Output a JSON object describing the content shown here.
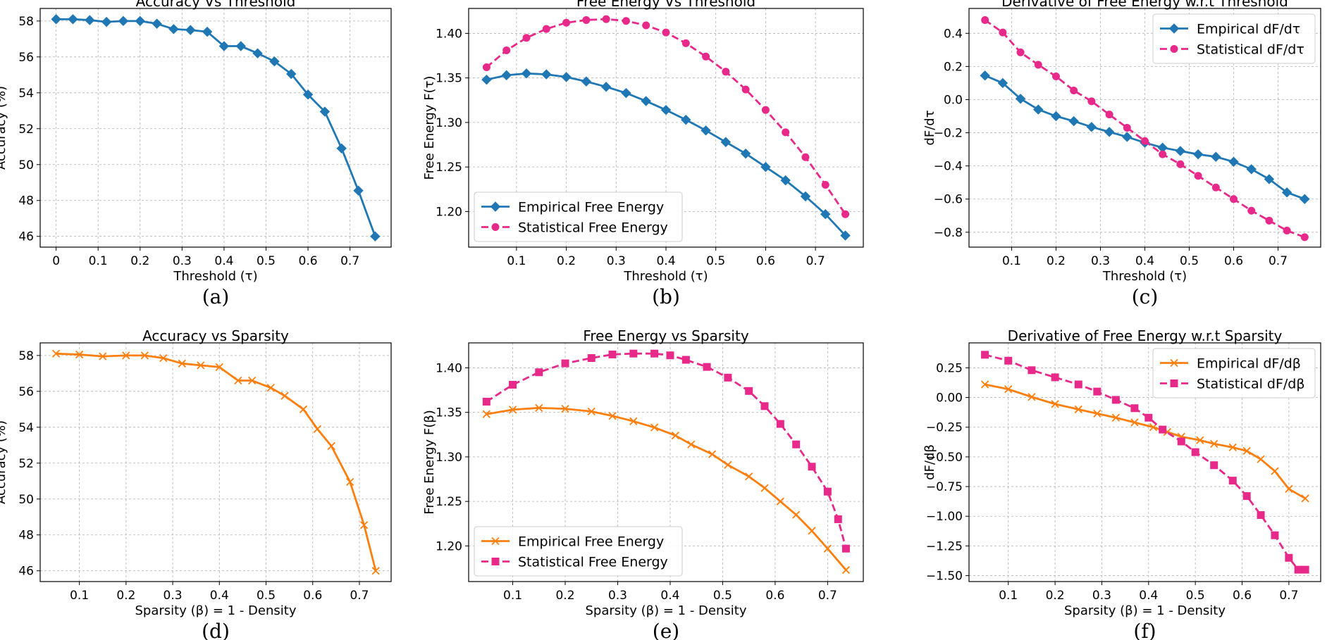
{
  "chart_data": [
    {
      "id": "a",
      "type": "line",
      "caption": "(a)",
      "title": "Accuracy Vs Threshold",
      "xlabel": "Threshold (τ)",
      "ylabel": "Accuracy (%)",
      "xlim": [
        -0.038,
        0.798
      ],
      "ylim": [
        45.4,
        58.7
      ],
      "xticks": [
        0.0,
        0.1,
        0.2,
        0.3,
        0.4,
        0.5,
        0.6,
        0.7
      ],
      "yticks": [
        46,
        48,
        50,
        52,
        54,
        56,
        58
      ],
      "grid": true,
      "legend": null,
      "series": [
        {
          "name": "Accuracy",
          "color": "#1f77b4",
          "dash": "solid",
          "marker": "diamond",
          "x": [
            0.0,
            0.04,
            0.08,
            0.12,
            0.16,
            0.2,
            0.24,
            0.28,
            0.32,
            0.36,
            0.4,
            0.44,
            0.48,
            0.52,
            0.56,
            0.6,
            0.64,
            0.68,
            0.72,
            0.76
          ],
          "y": [
            58.1,
            58.1,
            58.05,
            57.95,
            58.0,
            58.0,
            57.85,
            57.55,
            57.5,
            57.4,
            56.6,
            56.6,
            56.2,
            55.75,
            55.05,
            53.9,
            52.95,
            50.9,
            48.55,
            46.0
          ]
        }
      ]
    },
    {
      "id": "b",
      "type": "line",
      "caption": "(b)",
      "title": "Free Energy Vs Threshold",
      "xlabel": "Threshold (τ)",
      "ylabel": "Free Energy F(τ)",
      "xlim": [
        0.004,
        0.796
      ],
      "ylim": [
        1.16,
        1.428
      ],
      "xticks": [
        0.1,
        0.2,
        0.3,
        0.4,
        0.5,
        0.6,
        0.7
      ],
      "yticks": [
        1.2,
        1.25,
        1.3,
        1.35,
        1.4
      ],
      "ytick_labels": [
        "1.20",
        "1.25",
        "1.30",
        "1.35",
        "1.40"
      ],
      "grid": true,
      "legend": "lower-left",
      "series": [
        {
          "name": "Empirical Free Energy",
          "color": "#1f77b4",
          "dash": "solid",
          "marker": "diamond",
          "x": [
            0.04,
            0.08,
            0.12,
            0.16,
            0.2,
            0.24,
            0.28,
            0.32,
            0.36,
            0.4,
            0.44,
            0.48,
            0.52,
            0.56,
            0.6,
            0.64,
            0.68,
            0.72,
            0.76
          ],
          "y": [
            1.348,
            1.353,
            1.355,
            1.354,
            1.351,
            1.346,
            1.34,
            1.333,
            1.324,
            1.314,
            1.303,
            1.291,
            1.278,
            1.265,
            1.25,
            1.235,
            1.217,
            1.197,
            1.173
          ]
        },
        {
          "name": "Statistical Free Energy",
          "color": "#e7298a",
          "dash": "dashed",
          "marker": "circle",
          "x": [
            0.04,
            0.08,
            0.12,
            0.16,
            0.2,
            0.24,
            0.28,
            0.32,
            0.36,
            0.4,
            0.44,
            0.48,
            0.52,
            0.56,
            0.6,
            0.64,
            0.68,
            0.72,
            0.76
          ],
          "y": [
            1.362,
            1.381,
            1.395,
            1.405,
            1.412,
            1.415,
            1.416,
            1.414,
            1.409,
            1.401,
            1.389,
            1.374,
            1.357,
            1.337,
            1.314,
            1.289,
            1.261,
            1.23,
            1.197
          ]
        }
      ]
    },
    {
      "id": "c",
      "type": "line",
      "caption": "(c)",
      "title": "Derivative of Free Energy w.r.t Threshold",
      "xlabel": "Threshold (τ)",
      "ylabel": "dF/dτ",
      "xlim": [
        0.004,
        0.796
      ],
      "ylim": [
        -0.89,
        0.55
      ],
      "xticks": [
        0.1,
        0.2,
        0.3,
        0.4,
        0.5,
        0.6,
        0.7
      ],
      "yticks": [
        -0.8,
        -0.6,
        -0.4,
        -0.2,
        0.0,
        0.2,
        0.4
      ],
      "ytick_labels": [
        "−0.8",
        "−0.6",
        "−0.4",
        "−0.2",
        "0.0",
        "0.2",
        "0.4"
      ],
      "grid": true,
      "legend": "upper-right",
      "series": [
        {
          "name": "Empirical dF/dτ",
          "color": "#1f77b4",
          "dash": "solid",
          "marker": "diamond",
          "x": [
            0.04,
            0.08,
            0.12,
            0.16,
            0.2,
            0.24,
            0.28,
            0.32,
            0.36,
            0.4,
            0.44,
            0.48,
            0.52,
            0.56,
            0.6,
            0.64,
            0.68,
            0.72,
            0.76
          ],
          "y": [
            0.145,
            0.1,
            0.005,
            -0.06,
            -0.1,
            -0.13,
            -0.165,
            -0.195,
            -0.225,
            -0.26,
            -0.29,
            -0.31,
            -0.33,
            -0.345,
            -0.375,
            -0.42,
            -0.48,
            -0.56,
            -0.6
          ]
        },
        {
          "name": "Statistical dF/dτ",
          "color": "#e7298a",
          "dash": "dashed",
          "marker": "circle",
          "x": [
            0.04,
            0.08,
            0.12,
            0.16,
            0.2,
            0.24,
            0.28,
            0.32,
            0.36,
            0.4,
            0.44,
            0.48,
            0.52,
            0.56,
            0.6,
            0.64,
            0.68,
            0.72,
            0.76
          ],
          "y": [
            0.48,
            0.405,
            0.285,
            0.21,
            0.14,
            0.055,
            -0.01,
            -0.09,
            -0.17,
            -0.25,
            -0.33,
            -0.39,
            -0.46,
            -0.53,
            -0.6,
            -0.67,
            -0.73,
            -0.79,
            -0.83
          ]
        }
      ]
    },
    {
      "id": "d",
      "type": "line",
      "caption": "(d)",
      "title": "Accuracy vs Sparsity",
      "xlabel": "Sparsity (β) = 1 - Density",
      "ylabel": "Accuracy (%)",
      "xlim": [
        0.016,
        0.768
      ],
      "ylim": [
        45.4,
        58.7
      ],
      "xticks": [
        0.1,
        0.2,
        0.3,
        0.4,
        0.5,
        0.6,
        0.7
      ],
      "yticks": [
        46,
        48,
        50,
        52,
        54,
        56,
        58
      ],
      "grid": true,
      "legend": null,
      "series": [
        {
          "name": "Accuracy",
          "color": "#ff7f0e",
          "dash": "solid",
          "marker": "x",
          "x": [
            0.05,
            0.1,
            0.15,
            0.2,
            0.24,
            0.28,
            0.32,
            0.36,
            0.4,
            0.44,
            0.47,
            0.51,
            0.54,
            0.58,
            0.61,
            0.64,
            0.68,
            0.71,
            0.735
          ],
          "y": [
            58.1,
            58.05,
            57.95,
            58.0,
            58.0,
            57.85,
            57.55,
            57.45,
            57.35,
            56.6,
            56.6,
            56.2,
            55.75,
            55.0,
            53.9,
            52.95,
            50.95,
            48.55,
            46.0
          ]
        }
      ]
    },
    {
      "id": "e",
      "type": "line",
      "caption": "(e)",
      "title": "Free Energy vs Sparsity",
      "xlabel": "Sparsity (β) = 1 - Density",
      "ylabel": "Free Energy F(β)",
      "xlim": [
        0.016,
        0.768
      ],
      "ylim": [
        1.16,
        1.428
      ],
      "xticks": [
        0.1,
        0.2,
        0.3,
        0.4,
        0.5,
        0.6,
        0.7
      ],
      "yticks": [
        1.2,
        1.25,
        1.3,
        1.35,
        1.4
      ],
      "ytick_labels": [
        "1.20",
        "1.25",
        "1.30",
        "1.35",
        "1.40"
      ],
      "grid": true,
      "legend": "lower-left",
      "series": [
        {
          "name": "Empirical Free Energy",
          "color": "#ff7f0e",
          "dash": "solid",
          "marker": "x",
          "x": [
            0.05,
            0.1,
            0.15,
            0.2,
            0.25,
            0.29,
            0.33,
            0.37,
            0.41,
            0.44,
            0.48,
            0.51,
            0.55,
            0.58,
            0.61,
            0.64,
            0.67,
            0.7,
            0.735
          ],
          "y": [
            1.348,
            1.353,
            1.355,
            1.354,
            1.351,
            1.346,
            1.34,
            1.333,
            1.324,
            1.314,
            1.303,
            1.291,
            1.278,
            1.265,
            1.25,
            1.235,
            1.217,
            1.197,
            1.173
          ]
        },
        {
          "name": "Statistical Free Energy",
          "color": "#e7298a",
          "dash": "dashed",
          "marker": "square",
          "x": [
            0.05,
            0.1,
            0.15,
            0.2,
            0.25,
            0.29,
            0.33,
            0.37,
            0.4,
            0.43,
            0.47,
            0.51,
            0.55,
            0.58,
            0.61,
            0.64,
            0.67,
            0.7,
            0.72,
            0.735
          ],
          "y": [
            1.362,
            1.381,
            1.395,
            1.405,
            1.411,
            1.415,
            1.416,
            1.416,
            1.414,
            1.409,
            1.401,
            1.389,
            1.374,
            1.357,
            1.337,
            1.314,
            1.289,
            1.261,
            1.23,
            1.197
          ]
        }
      ]
    },
    {
      "id": "f",
      "type": "line",
      "caption": "(f)",
      "title": "Derivative of Free Energy w.r.t Sparsity",
      "xlabel": "Sparsity (β) = 1 - Density",
      "ylabel": "dF/dβ",
      "xlim": [
        0.016,
        0.768
      ],
      "ylim": [
        -1.55,
        0.46
      ],
      "xticks": [
        0.1,
        0.2,
        0.3,
        0.4,
        0.5,
        0.6,
        0.7
      ],
      "yticks": [
        -1.5,
        -1.25,
        -1.0,
        -0.75,
        -0.5,
        -0.25,
        0.0,
        0.25
      ],
      "ytick_labels": [
        "−1.50",
        "−1.25",
        "−1.00",
        "−0.75",
        "−0.50",
        "−0.25",
        "0.00",
        "0.25"
      ],
      "grid": true,
      "legend": "upper-right",
      "series": [
        {
          "name": "Empirical dF/dβ",
          "color": "#ff7f0e",
          "dash": "solid",
          "marker": "x",
          "x": [
            0.05,
            0.1,
            0.15,
            0.2,
            0.25,
            0.29,
            0.33,
            0.37,
            0.41,
            0.44,
            0.47,
            0.51,
            0.54,
            0.58,
            0.61,
            0.64,
            0.67,
            0.7,
            0.735
          ],
          "y": [
            0.11,
            0.07,
            0.005,
            -0.055,
            -0.1,
            -0.135,
            -0.17,
            -0.21,
            -0.25,
            -0.29,
            -0.33,
            -0.36,
            -0.39,
            -0.42,
            -0.45,
            -0.52,
            -0.62,
            -0.77,
            -0.85
          ]
        },
        {
          "name": "Statistical dF/dβ",
          "color": "#e7298a",
          "dash": "dashed",
          "marker": "square",
          "x": [
            0.05,
            0.1,
            0.15,
            0.2,
            0.25,
            0.29,
            0.33,
            0.37,
            0.4,
            0.43,
            0.47,
            0.5,
            0.54,
            0.58,
            0.61,
            0.64,
            0.67,
            0.7,
            0.72,
            0.735
          ],
          "y": [
            0.36,
            0.31,
            0.23,
            0.17,
            0.11,
            0.05,
            -0.02,
            -0.09,
            -0.17,
            -0.27,
            -0.37,
            -0.46,
            -0.57,
            -0.7,
            -0.83,
            -0.99,
            -1.16,
            -1.35,
            -1.45,
            -1.45
          ]
        }
      ]
    }
  ]
}
